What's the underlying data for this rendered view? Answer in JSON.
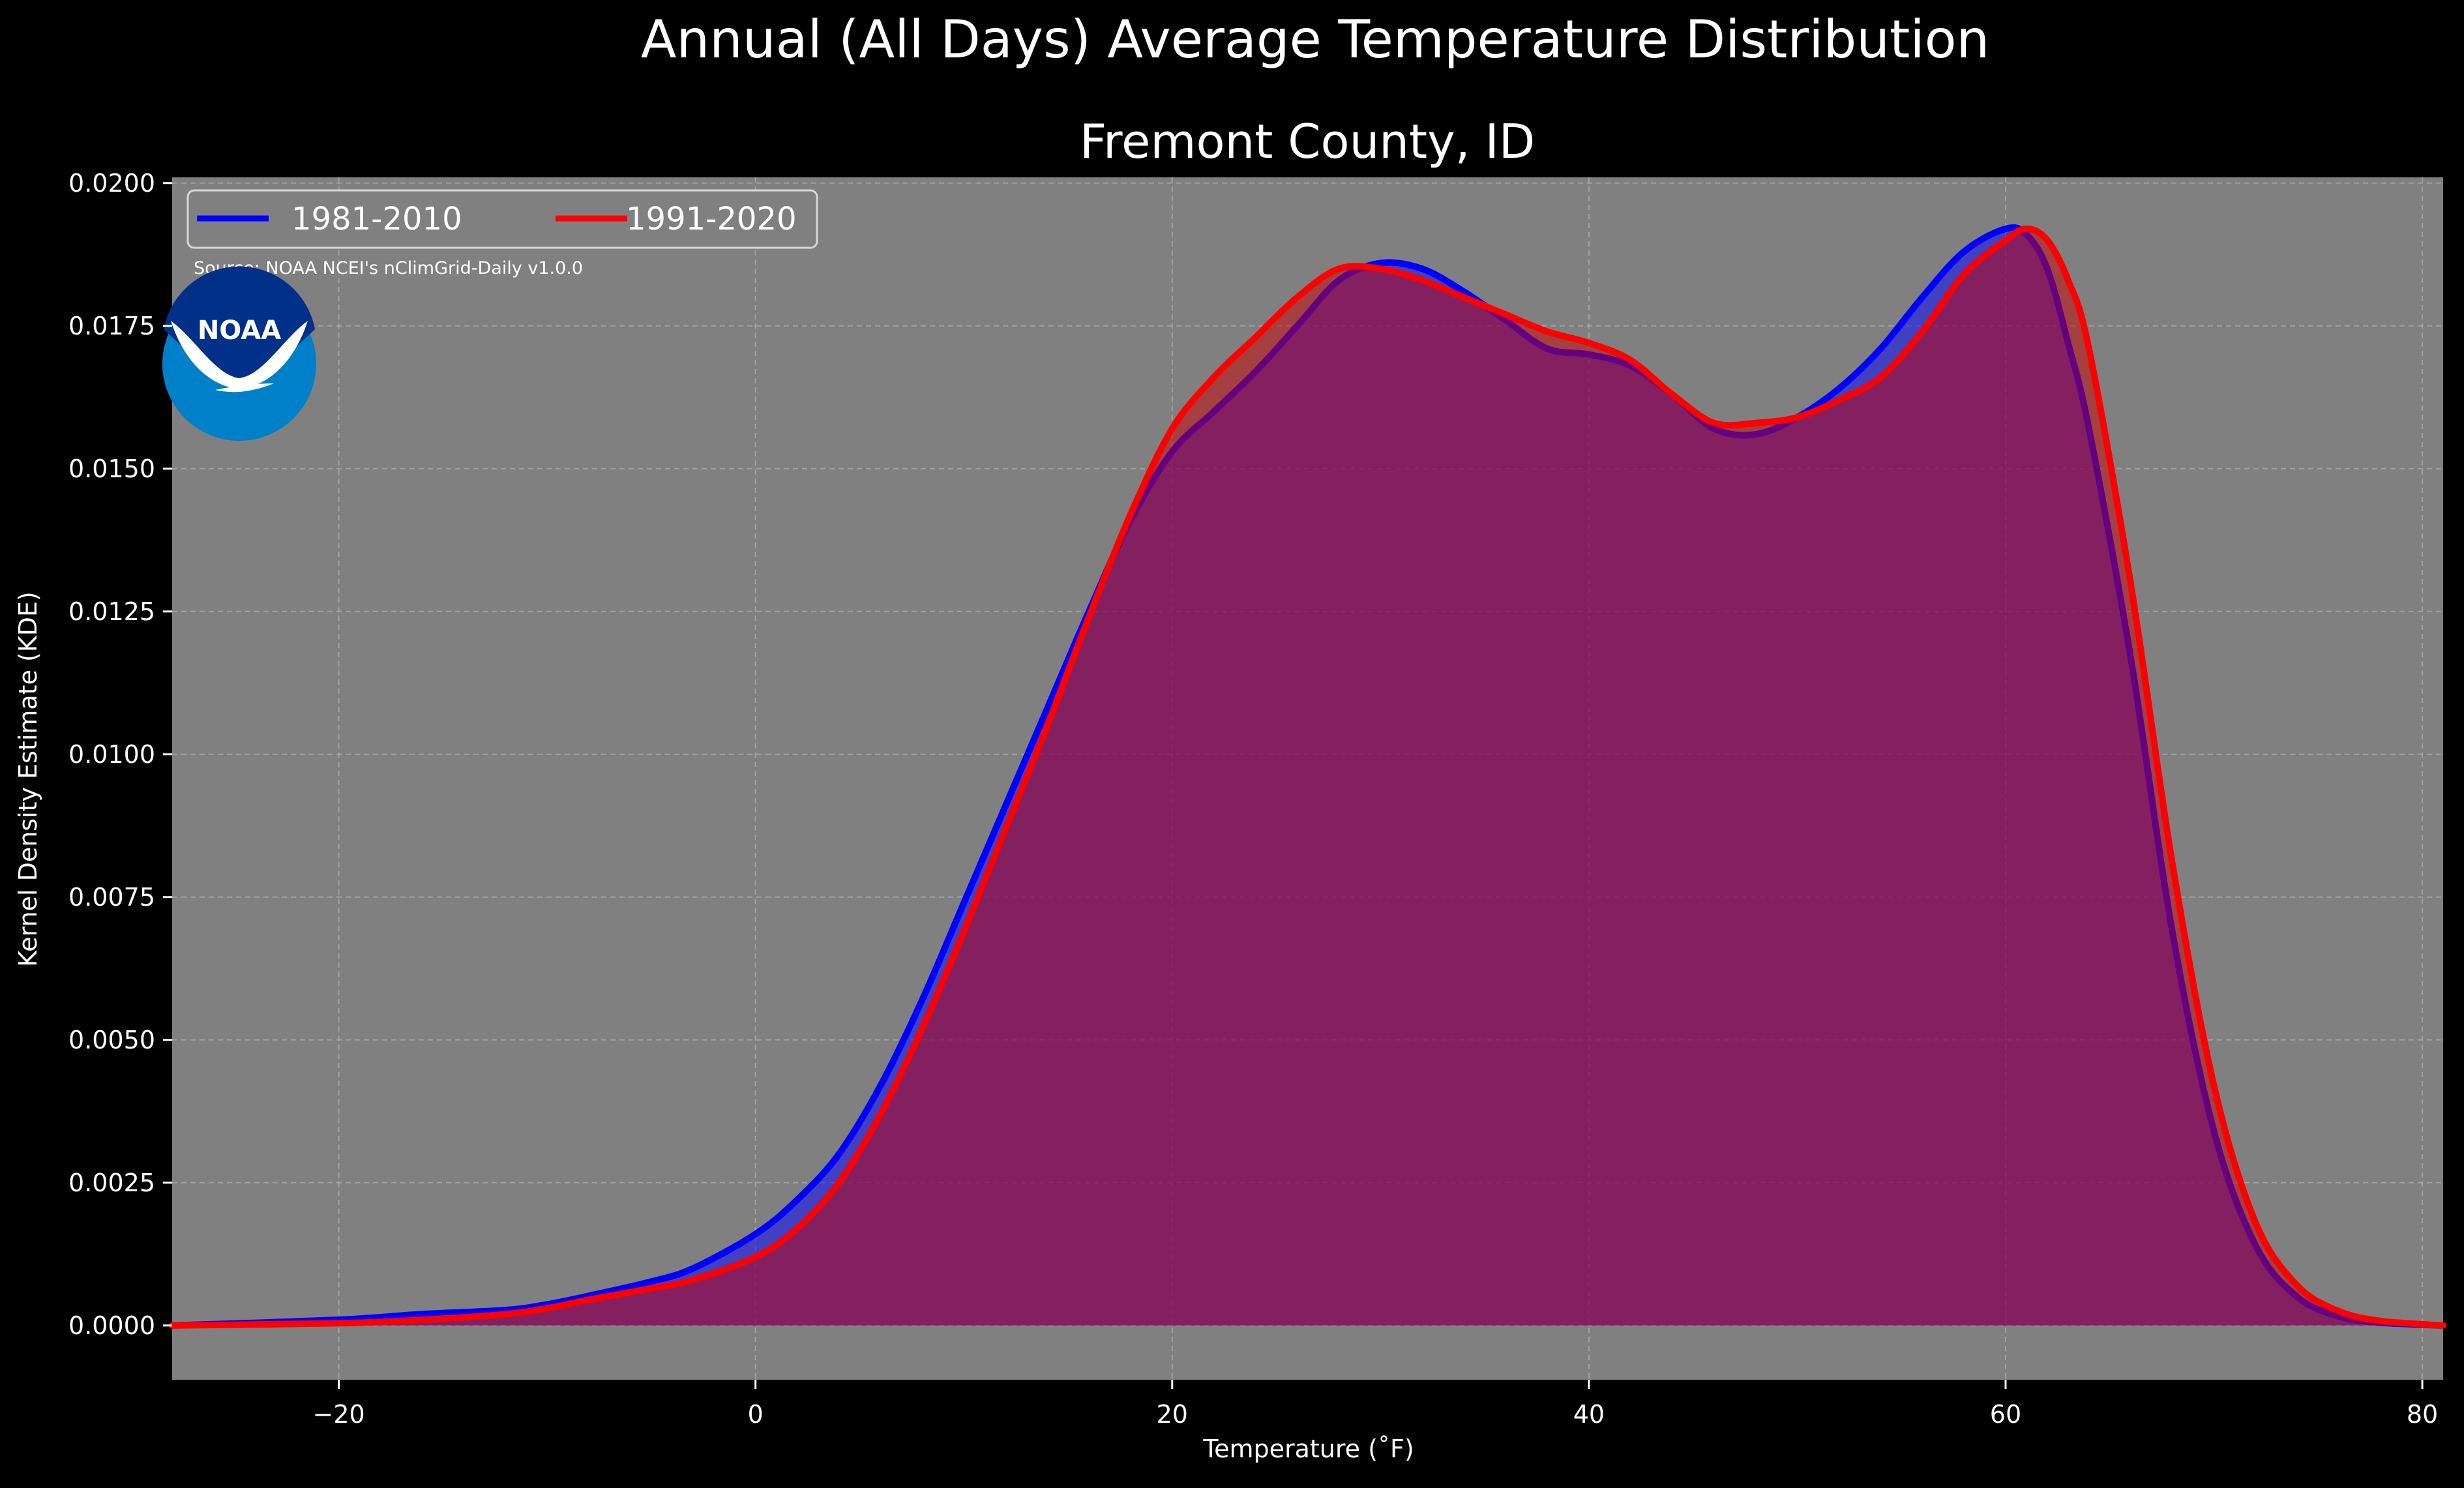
{
  "chart_data": {
    "type": "area",
    "title": "Annual (All Days) Average Temperature Distribution",
    "subtitle": "Fremont County, ID",
    "xlabel": "Temperature ($^\\circ$F)",
    "xlabel_display": "Temperature (˚F)",
    "ylabel": "Kernel Density Estimate (KDE)",
    "xlim": [
      -28,
      81
    ],
    "ylim": [
      -0.00095,
      0.0201
    ],
    "x_ticks": [
      -20,
      0,
      20,
      40,
      60,
      80
    ],
    "x_tick_labels": [
      "−20",
      "0",
      "20",
      "40",
      "60",
      "80"
    ],
    "y_ticks": [
      0.0,
      0.0025,
      0.005,
      0.0075,
      0.01,
      0.0125,
      0.015,
      0.0175,
      0.02
    ],
    "y_tick_labels": [
      "0.0000",
      "0.0025",
      "0.0050",
      "0.0075",
      "0.0100",
      "0.0125",
      "0.0150",
      "0.0175",
      "0.0200"
    ],
    "grid": true,
    "legend_position": "top-left",
    "source_note": "Source: NOAA NCEI's nClimGrid-Daily v1.0.0",
    "logo_text": "NOAA",
    "colors": {
      "figure_background": "#000000",
      "plot_background": "#808080",
      "text": "#ffffff",
      "grid": "#b0b0b0"
    },
    "series": [
      {
        "name": "1981-2010",
        "color": "#0000ff",
        "fill": "rgba(0,0,255,0.5)",
        "x": [
          -28,
          -20,
          -16,
          -12,
          -10,
          -8,
          -5,
          -3,
          0,
          2,
          4,
          6,
          8,
          10,
          12,
          14,
          16,
          18,
          20,
          22,
          24,
          26,
          28,
          30,
          32,
          34,
          36,
          38,
          40,
          42,
          44,
          46,
          48,
          50,
          52,
          54,
          56,
          58,
          60,
          61,
          62,
          63,
          64,
          66,
          68,
          70,
          72,
          74,
          76,
          78,
          81
        ],
        "y": [
          0.0,
          0.0001,
          0.0002,
          0.00027,
          0.00037,
          0.00052,
          0.00077,
          0.001,
          0.0016,
          0.0022,
          0.003,
          0.0042,
          0.0057,
          0.0074,
          0.0091,
          0.0108,
          0.0125,
          0.0141,
          0.0153,
          0.016,
          0.0167,
          0.0175,
          0.0183,
          0.0186,
          0.0185,
          0.0181,
          0.0176,
          0.0171,
          0.017,
          0.0168,
          0.0163,
          0.0157,
          0.0156,
          0.0159,
          0.0164,
          0.0171,
          0.018,
          0.0188,
          0.0192,
          0.0191,
          0.0185,
          0.0172,
          0.0157,
          0.0117,
          0.0069,
          0.0034,
          0.0014,
          0.0005,
          0.00016,
          5e-05,
          0.0
        ]
      },
      {
        "name": "1991-2020",
        "color": "#ff0000",
        "fill": "rgba(200,0,0,0.5)",
        "x": [
          -28,
          -20,
          -16,
          -12,
          -10,
          -8,
          -5,
          -3,
          0,
          2,
          4,
          6,
          8,
          10,
          12,
          14,
          16,
          18,
          20,
          22,
          24,
          26,
          28,
          30,
          32,
          34,
          36,
          38,
          40,
          42,
          44,
          46,
          48,
          50,
          52,
          54,
          56,
          58,
          60,
          61,
          62,
          63,
          64,
          66,
          68,
          70,
          72,
          74,
          76,
          78,
          81
        ],
        "y": [
          0.0,
          4e-05,
          0.0001,
          0.0002,
          0.0003,
          0.00045,
          0.00065,
          0.0008,
          0.0012,
          0.0017,
          0.0025,
          0.0037,
          0.0052,
          0.0069,
          0.0087,
          0.0105,
          0.0124,
          0.0142,
          0.0157,
          0.0166,
          0.0173,
          0.018,
          0.0185,
          0.0185,
          0.0183,
          0.018,
          0.0177,
          0.0174,
          0.0172,
          0.0169,
          0.0163,
          0.0158,
          0.0158,
          0.0159,
          0.0162,
          0.0166,
          0.0174,
          0.0184,
          0.019,
          0.0192,
          0.019,
          0.0183,
          0.0171,
          0.013,
          0.0081,
          0.0042,
          0.0018,
          0.0007,
          0.00025,
          8e-05,
          0.0
        ]
      }
    ]
  }
}
